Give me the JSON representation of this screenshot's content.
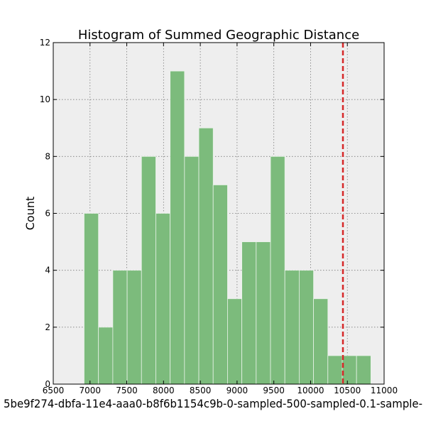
{
  "chart_data": {
    "type": "bar",
    "title": "Histogram of Summed Geographic Distance",
    "xlabel": "5be9f274-dbfa-11e4-aaa0-b8f6b1154c9b-0-sampled-500-sampled-0.1-sample-",
    "ylabel": "Count",
    "xlim": [
      6500,
      11000
    ],
    "ylim": [
      0,
      12
    ],
    "x_ticks": [
      6500,
      7000,
      7500,
      8000,
      8500,
      9000,
      9500,
      10000,
      10500,
      11000
    ],
    "y_ticks": [
      0,
      2,
      4,
      6,
      8,
      10,
      12
    ],
    "bins": [
      {
        "x0": 6920,
        "x1": 7115,
        "count": 6
      },
      {
        "x0": 7115,
        "x1": 7310,
        "count": 2
      },
      {
        "x0": 7310,
        "x1": 7505,
        "count": 4
      },
      {
        "x0": 7505,
        "x1": 7700,
        "count": 4
      },
      {
        "x0": 7700,
        "x1": 7895,
        "count": 8
      },
      {
        "x0": 7895,
        "x1": 8090,
        "count": 6
      },
      {
        "x0": 8090,
        "x1": 8285,
        "count": 11
      },
      {
        "x0": 8285,
        "x1": 8480,
        "count": 8
      },
      {
        "x0": 8480,
        "x1": 8675,
        "count": 9
      },
      {
        "x0": 8675,
        "x1": 8870,
        "count": 7
      },
      {
        "x0": 8870,
        "x1": 9065,
        "count": 3
      },
      {
        "x0": 9065,
        "x1": 9260,
        "count": 5
      },
      {
        "x0": 9260,
        "x1": 9455,
        "count": 5
      },
      {
        "x0": 9455,
        "x1": 9650,
        "count": 8
      },
      {
        "x0": 9650,
        "x1": 9845,
        "count": 4
      },
      {
        "x0": 9845,
        "x1": 10040,
        "count": 4
      },
      {
        "x0": 10040,
        "x1": 10235,
        "count": 3
      },
      {
        "x0": 10235,
        "x1": 10430,
        "count": 1
      },
      {
        "x0": 10430,
        "x1": 10625,
        "count": 1
      },
      {
        "x0": 10625,
        "x1": 10820,
        "count": 1
      }
    ],
    "reference_line": {
      "x": 10440,
      "color": "#d62728",
      "style": "dashed"
    },
    "bar_color": "#7cbb7c",
    "grid": true,
    "background_color": "#eeeeee"
  }
}
